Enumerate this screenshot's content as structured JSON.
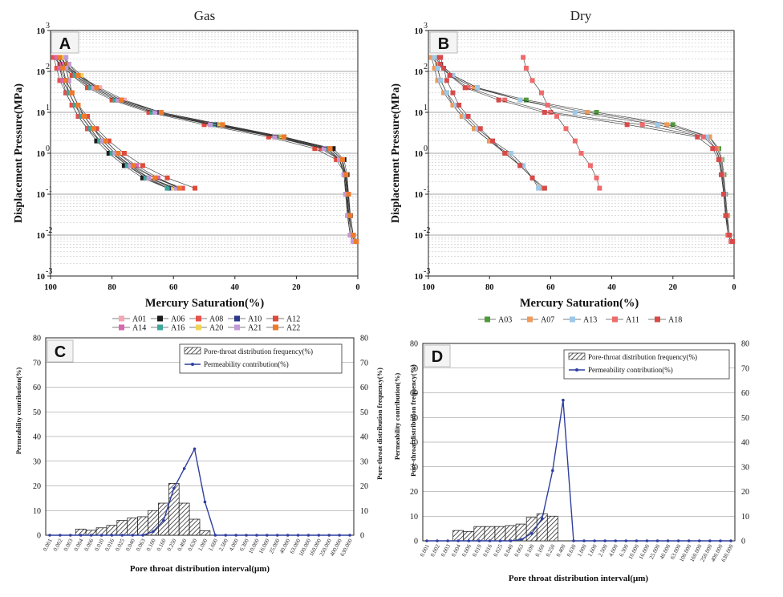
{
  "colors": {
    "A01": "#f4a6b5",
    "A06": "#1a1a1a",
    "A08": "#e8504a",
    "A10": "#2d3a8c",
    "A12": "#e04a3a",
    "A14": "#d866b0",
    "A16": "#3aa89a",
    "A20": "#f1d35a",
    "A21": "#c39ad8",
    "A22": "#ef7a2a",
    "A03": "#4e9a3a",
    "A07": "#ef9a5a",
    "A13": "#9cc8ea",
    "A11": "#ef6a6a",
    "A18": "#d84a4a",
    "line": "#2f3f9f",
    "frame": "#222222",
    "grid": "#999999"
  },
  "chart_data": [
    {
      "id": "A",
      "type": "line",
      "title": "Gas",
      "xlabel": "Mercury Saturation(%)",
      "ylabel": "Displacement Pressure(MPa)",
      "xlim": [
        100,
        0
      ],
      "ylim_log10": [
        -3,
        3
      ],
      "xticks": [
        "100",
        "80",
        "60",
        "40",
        "20",
        "0"
      ],
      "ytick_exponents": [
        "-3",
        "-2",
        "-1",
        "0",
        "1",
        "2",
        "3"
      ],
      "y_base": "10",
      "legend": [
        "A01",
        "A06",
        "A08",
        "A10",
        "A12",
        "A14",
        "A16",
        "A20",
        "A21",
        "A22"
      ],
      "intrusion_pressure": [
        0.007,
        0.01,
        0.03,
        0.1,
        0.3,
        0.7,
        1.3,
        2.5,
        5,
        10,
        20,
        40,
        80,
        150,
        220
      ],
      "intrusion": [
        {
          "name": "A01",
          "values": [
            1.5,
            2.5,
            3.2,
            3.8,
            4.2,
            5,
            9,
            24,
            45,
            64,
            76,
            84,
            91,
            96,
            98
          ]
        },
        {
          "name": "A06",
          "values": [
            0.5,
            1.5,
            2.4,
            3,
            3.5,
            4.5,
            8,
            24,
            46,
            66,
            78,
            86,
            92,
            96,
            98
          ]
        },
        {
          "name": "A08",
          "values": [
            1,
            2,
            3,
            3.6,
            4,
            6,
            12,
            27,
            48,
            67,
            79,
            87,
            93,
            97,
            99
          ]
        },
        {
          "name": "A10",
          "values": [
            0.5,
            1.5,
            2.6,
            3.2,
            3.8,
            5.5,
            10,
            25,
            46,
            65,
            77,
            85,
            91,
            95,
            97
          ]
        },
        {
          "name": "A12",
          "values": [
            1,
            2,
            3,
            3.5,
            4,
            7,
            14,
            29,
            50,
            68,
            80,
            88,
            93,
            96,
            98
          ]
        },
        {
          "name": "A14",
          "values": [
            0.5,
            1.5,
            2.5,
            3.2,
            4,
            6,
            11,
            26,
            47,
            66,
            78,
            86,
            92,
            96,
            98
          ]
        },
        {
          "name": "A16",
          "values": [
            1,
            2,
            3,
            3.8,
            4.5,
            6,
            10,
            26,
            47,
            67,
            79,
            87,
            92,
            95,
            97
          ]
        },
        {
          "name": "A20",
          "values": [
            1,
            2,
            2.8,
            3.4,
            4.2,
            5,
            9,
            25,
            45,
            64,
            77,
            85,
            90,
            94,
            96
          ]
        },
        {
          "name": "A21",
          "values": [
            1.5,
            2.5,
            3.4,
            4,
            4.5,
            6,
            11,
            27,
            48,
            66,
            78,
            86,
            91,
            94,
            95
          ]
        },
        {
          "name": "A22",
          "values": [
            0.5,
            1.5,
            2.5,
            3,
            3.8,
            5,
            9,
            24,
            44,
            64,
            77,
            85,
            91,
            95,
            97
          ]
        }
      ],
      "extrusion_pressure": [
        220,
        120,
        60,
        30,
        15,
        8,
        4,
        2,
        1,
        0.5,
        0.25,
        0.14
      ],
      "extrusion": [
        {
          "name": "A01",
          "values": [
            98,
            97,
            96,
            94,
            92,
            90,
            87,
            84,
            80,
            75,
            68,
            60
          ]
        },
        {
          "name": "A06",
          "values": [
            98,
            97,
            96,
            95,
            93,
            91,
            88,
            85,
            81,
            76,
            70,
            62
          ]
        },
        {
          "name": "A08",
          "values": [
            99,
            98,
            97,
            95,
            93,
            91,
            88,
            84,
            80,
            74,
            66,
            57
          ]
        },
        {
          "name": "A10",
          "values": [
            97,
            96,
            95,
            94,
            92,
            90,
            87,
            84,
            80,
            75,
            69,
            61
          ]
        },
        {
          "name": "A12",
          "values": [
            98,
            97,
            95,
            93,
            91,
            88,
            85,
            81,
            76,
            70,
            62,
            53
          ]
        },
        {
          "name": "A14",
          "values": [
            98,
            97,
            96,
            94,
            92,
            89,
            86,
            82,
            78,
            72,
            65,
            58
          ]
        },
        {
          "name": "A16",
          "values": [
            97,
            96,
            95,
            94,
            92,
            90,
            87,
            84,
            80,
            75,
            69,
            62
          ]
        },
        {
          "name": "A20",
          "values": [
            96,
            95,
            94,
            93,
            91,
            89,
            86,
            83,
            79,
            74,
            68,
            60
          ]
        },
        {
          "name": "A21",
          "values": [
            95,
            95,
            94,
            93,
            91,
            89,
            86,
            83,
            79,
            74,
            68,
            59
          ]
        },
        {
          "name": "A22",
          "values": [
            97,
            96,
            95,
            93,
            91,
            89,
            86,
            82,
            78,
            73,
            66,
            58
          ]
        }
      ]
    },
    {
      "id": "B",
      "type": "line",
      "title": "Dry",
      "xlabel": "Mercury Saturation(%)",
      "ylabel": "Displacement Pressure(MPa)",
      "xlim": [
        100,
        0
      ],
      "ylim_log10": [
        -3,
        3
      ],
      "xticks": [
        "100",
        "80",
        "60",
        "40",
        "20",
        "0"
      ],
      "ytick_exponents": [
        "-3",
        "-2",
        "-1",
        "0",
        "1",
        "2",
        "3"
      ],
      "y_base": "10",
      "legend": [
        "A03",
        "A07",
        "A13",
        "A11",
        "A18"
      ],
      "intrusion_pressure": [
        0.007,
        0.01,
        0.03,
        0.1,
        0.3,
        0.7,
        1.3,
        2.5,
        5,
        10,
        20,
        40,
        80,
        150,
        220
      ],
      "intrusion": [
        {
          "name": "A03",
          "values": [
            0.5,
            1.5,
            2.2,
            2.8,
            3.3,
            4,
            5,
            8,
            20,
            45,
            68,
            84,
            92,
            96,
            98
          ]
        },
        {
          "name": "A07",
          "values": [
            0.5,
            1.5,
            2.4,
            3,
            3.6,
            4.2,
            5.5,
            8,
            22,
            48,
            70,
            85,
            93,
            97,
            99
          ]
        },
        {
          "name": "A13",
          "values": [
            1,
            2,
            2.6,
            3.2,
            3.8,
            4.6,
            6,
            9,
            25,
            52,
            70,
            84,
            92,
            96,
            98
          ]
        },
        {
          "name": "A11",
          "values": [
            1,
            2,
            2.8,
            3.4,
            4,
            4.8,
            6,
            10,
            30,
            60,
            75,
            87,
            93,
            96,
            97
          ]
        },
        {
          "name": "A18",
          "values": [
            0.5,
            1.5,
            2.6,
            3.4,
            4.2,
            5,
            7,
            12,
            35,
            62,
            77,
            88,
            93,
            96,
            97
          ]
        }
      ],
      "extrusion_pressure": [
        220,
        120,
        60,
        30,
        15,
        8,
        4,
        2,
        1,
        0.5,
        0.25,
        0.14
      ],
      "extrusion": [
        {
          "name": "A03",
          "values": [
            98,
            97,
            96,
            94,
            92,
            89,
            85,
            80,
            75,
            70,
            66,
            62
          ]
        },
        {
          "name": "A07",
          "values": [
            99,
            98,
            97,
            95,
            92,
            89,
            85,
            80,
            74,
            70,
            66,
            63
          ]
        },
        {
          "name": "A13",
          "values": [
            98,
            97,
            96,
            94,
            91,
            88,
            84,
            79,
            73,
            69,
            66,
            64
          ]
        },
        {
          "name": "A11",
          "values": [
            69,
            68,
            66,
            63,
            61,
            58,
            55,
            52,
            50,
            47,
            45,
            44
          ]
        },
        {
          "name": "A18",
          "values": [
            96,
            95,
            94,
            92,
            90,
            87,
            83,
            79,
            75,
            70,
            66,
            62
          ]
        }
      ]
    },
    {
      "id": "C",
      "type": "bar+line",
      "xlabel": "Pore throat distribution interval(μm)",
      "ylabel_left": "Permeability contribution(%)",
      "ylabel_right": "Pore-throat distribution frequency(%)",
      "ylim": [
        0,
        80
      ],
      "yticks": [
        "0",
        "10",
        "20",
        "30",
        "40",
        "50",
        "60",
        "70",
        "80"
      ],
      "legend_bar": "Pore-throat distribution frequency(%)",
      "legend_line": "Permeability contribution(%)",
      "categories": [
        "0.001",
        "0.002",
        "0.003",
        "0.004",
        "0.006",
        "0.010",
        "0.016",
        "0.025",
        "0.040",
        "0.063",
        "0.100",
        "0.160",
        "0.250",
        "0.400",
        "0.630",
        "1.000",
        "1.600",
        "2.500",
        "4.000",
        "6.300",
        "10.000",
        "16.000",
        "25.000",
        "40.000",
        "63.000",
        "100.000",
        "160.000",
        "250.000",
        "400.000",
        "630.000"
      ],
      "bar_values": [
        0,
        0,
        0,
        2.5,
        2,
        3,
        4,
        6,
        7,
        7.5,
        10,
        13,
        21,
        13,
        6.5,
        1.8,
        0,
        0,
        0,
        0,
        0,
        0,
        0,
        0,
        0,
        0,
        0,
        0,
        0,
        0
      ],
      "line_values": [
        0,
        0,
        0,
        0,
        0,
        0,
        0,
        0,
        0,
        0,
        1.5,
        6,
        19,
        27,
        35,
        13.5,
        0,
        0,
        0,
        0,
        0,
        0,
        0,
        0,
        0,
        0,
        0,
        0,
        0,
        0
      ]
    },
    {
      "id": "D",
      "type": "bar+line",
      "xlabel": "Pore throat distribution interval(μm)",
      "ylabel_left": "Permeability contribution(%)",
      "ylabel_right": "Pore-throat distribution frequency(%)",
      "ylim": [
        0,
        80
      ],
      "yticks": [
        "0",
        "10",
        "20",
        "30",
        "40",
        "50",
        "60",
        "70",
        "80"
      ],
      "legend_bar": "Pore-throat distribution frequency(%)",
      "legend_line": "Permeability contribution(%)",
      "categories": [
        "0.001",
        "0.002",
        "0.003",
        "0.004",
        "0.006",
        "0.010",
        "0.016",
        "0.025",
        "0.040",
        "0.063",
        "0.100",
        "0.160",
        "0.250",
        "0.400",
        "0.630",
        "1.000",
        "1.600",
        "2.500",
        "4.000",
        "6.300",
        "10.000",
        "16.000",
        "25.000",
        "40.000",
        "63.000",
        "100.000",
        "160.000",
        "250.000",
        "400.000",
        "630.000"
      ],
      "bar_values": [
        0,
        0,
        0,
        4.2,
        3.8,
        5.8,
        5.8,
        5.8,
        6.2,
        6.8,
        9.5,
        11,
        10,
        0,
        0,
        0,
        0,
        0,
        0,
        0,
        0,
        0,
        0,
        0,
        0,
        0,
        0,
        0,
        0,
        0
      ],
      "line_values": [
        0,
        0,
        0,
        0,
        0,
        0,
        0,
        0,
        0,
        0.5,
        3,
        9,
        28.5,
        57,
        0,
        0,
        0,
        0,
        0,
        0,
        0,
        0,
        0,
        0,
        0,
        0,
        0,
        0,
        0,
        0
      ]
    }
  ]
}
